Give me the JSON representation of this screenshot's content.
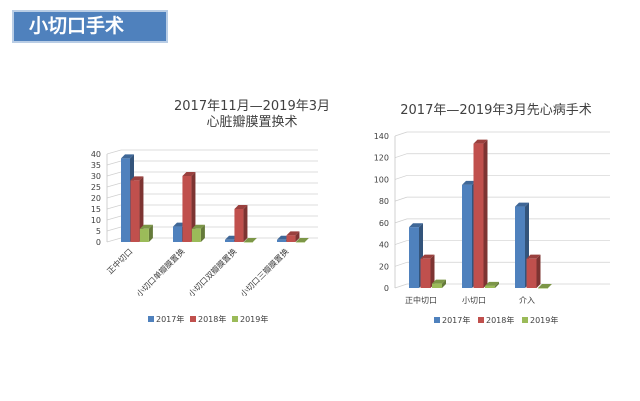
{
  "slide": {
    "title": "小切口手术"
  },
  "colors": {
    "s2017": "#4f81bd",
    "s2018": "#c0504d",
    "s2019": "#9bbb59"
  },
  "chart_data": [
    {
      "type": "bar",
      "title": [
        "2017年11月—2019年3月",
        "心脏瓣膜置换术"
      ],
      "categories": [
        "正中切口",
        "小切口单瓣膜置换",
        "小切口双瓣膜置换",
        "小切口三瓣膜置换"
      ],
      "series": [
        {
          "name": "2017年",
          "values": [
            38,
            7,
            1,
            1
          ]
        },
        {
          "name": "2018年",
          "values": [
            28,
            30,
            15,
            3
          ]
        },
        {
          "name": "2019年",
          "values": [
            6,
            6,
            0,
            0
          ]
        }
      ],
      "ylim": [
        0,
        40
      ],
      "yticks": [
        0,
        5,
        10,
        15,
        20,
        25,
        30,
        35,
        40
      ],
      "grid": true,
      "legend": "bottom"
    },
    {
      "type": "bar",
      "title": [
        "2017年—2019年3月先心病手术"
      ],
      "categories": [
        "正中切口",
        "小切口",
        "介入"
      ],
      "series": [
        {
          "name": "2017年",
          "values": [
            56,
            95,
            75
          ]
        },
        {
          "name": "2018年",
          "values": [
            27,
            133,
            27
          ]
        },
        {
          "name": "2019年",
          "values": [
            4,
            2,
            0
          ]
        }
      ],
      "ylim": [
        0,
        140
      ],
      "yticks": [
        0,
        20,
        40,
        60,
        80,
        100,
        120,
        140
      ],
      "grid": true,
      "legend": "bottom"
    }
  ]
}
